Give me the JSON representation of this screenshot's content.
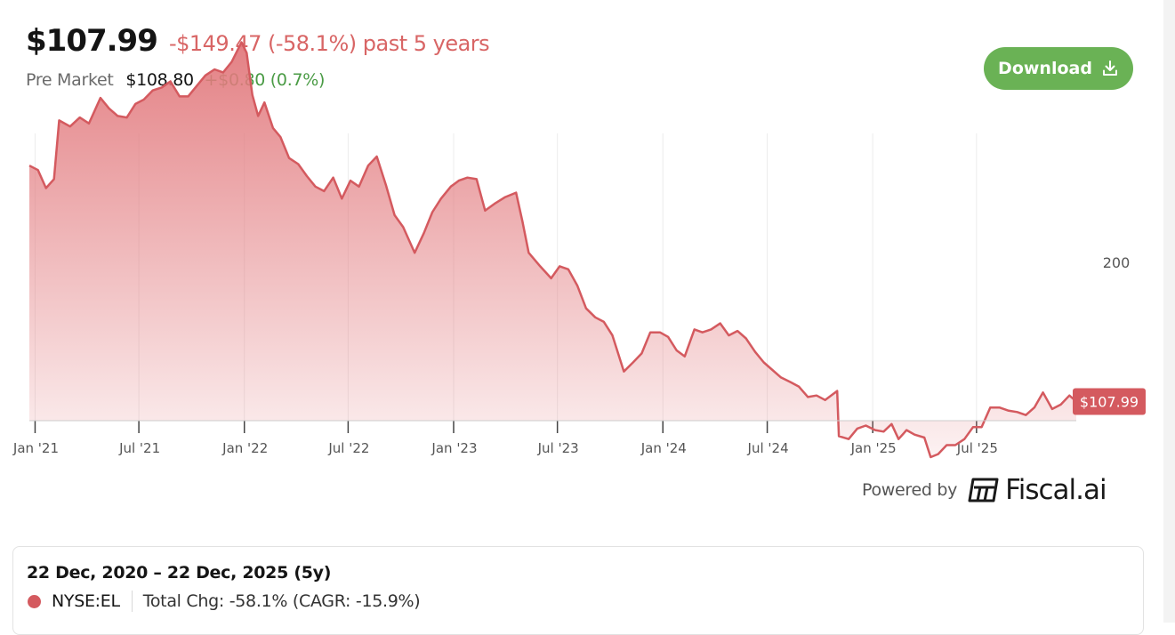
{
  "header": {
    "price": "$107.99",
    "change": "-$149.47 (-58.1%) past 5 years",
    "premarket_label": "Pre Market",
    "premarket_price": "$108.80",
    "premarket_change": "+$0.80 (0.7%)"
  },
  "download": {
    "label": "Download",
    "icon": "download-icon"
  },
  "colors": {
    "line": "#d45a5f",
    "fill": "#e27a7e",
    "grid": "#ececec",
    "positive": "#4a9b45",
    "negative": "#d86565",
    "button": "#6ab255"
  },
  "chart_data": {
    "type": "area",
    "x_label": "",
    "y_label": "",
    "ylim": [
      80,
      330
    ],
    "y_ticks": [
      {
        "value": 200,
        "label": "200"
      },
      {
        "value": 100,
        "label": "—"
      }
    ],
    "x_ticks": [
      {
        "date": "2021-01-01",
        "label": "Jan '21"
      },
      {
        "date": "2021-07-01",
        "label": "Jul '21"
      },
      {
        "date": "2022-01-01",
        "label": "Jan '22"
      },
      {
        "date": "2022-07-01",
        "label": "Jul '22"
      },
      {
        "date": "2023-01-01",
        "label": "Jan '23"
      },
      {
        "date": "2023-07-01",
        "label": "Jul '23"
      },
      {
        "date": "2024-01-01",
        "label": "Jan '24"
      },
      {
        "date": "2024-07-01",
        "label": "Jul '24"
      },
      {
        "date": "2025-01-01",
        "label": "Jan '25"
      },
      {
        "date": "2025-07-01",
        "label": "Jul '25"
      }
    ],
    "x_range": [
      "2020-12-22",
      "2025-12-22"
    ],
    "last_value_label": "$107.99",
    "series": [
      {
        "values": [
          [
            "2020-12-22",
            265
          ],
          [
            "2021-01-06",
            262
          ],
          [
            "2021-01-20",
            250
          ],
          [
            "2021-02-03",
            256
          ],
          [
            "2021-02-12",
            295
          ],
          [
            "2021-03-03",
            291
          ],
          [
            "2021-03-20",
            297
          ],
          [
            "2021-04-05",
            293
          ],
          [
            "2021-04-25",
            310
          ],
          [
            "2021-05-10",
            303
          ],
          [
            "2021-05-25",
            298
          ],
          [
            "2021-06-10",
            297
          ],
          [
            "2021-06-25",
            306
          ],
          [
            "2021-07-10",
            309
          ],
          [
            "2021-07-25",
            315
          ],
          [
            "2021-08-10",
            317
          ],
          [
            "2021-08-25",
            321
          ],
          [
            "2021-09-10",
            311
          ],
          [
            "2021-09-25",
            311
          ],
          [
            "2021-10-10",
            318
          ],
          [
            "2021-10-25",
            325
          ],
          [
            "2021-11-10",
            329
          ],
          [
            "2021-11-25",
            327
          ],
          [
            "2021-12-10",
            334
          ],
          [
            "2021-12-27",
            347
          ],
          [
            "2022-01-05",
            340
          ],
          [
            "2022-01-15",
            312
          ],
          [
            "2022-01-25",
            298
          ],
          [
            "2022-02-05",
            307
          ],
          [
            "2022-02-20",
            290
          ],
          [
            "2022-03-05",
            284
          ],
          [
            "2022-03-20",
            270
          ],
          [
            "2022-04-05",
            266
          ],
          [
            "2022-04-20",
            258
          ],
          [
            "2022-05-05",
            251
          ],
          [
            "2022-05-20",
            248
          ],
          [
            "2022-06-05",
            257
          ],
          [
            "2022-06-20",
            243
          ],
          [
            "2022-07-05",
            255
          ],
          [
            "2022-07-20",
            251
          ],
          [
            "2022-08-05",
            265
          ],
          [
            "2022-08-20",
            271
          ],
          [
            "2022-09-05",
            252
          ],
          [
            "2022-09-20",
            232
          ],
          [
            "2022-10-05",
            224
          ],
          [
            "2022-10-25",
            207
          ],
          [
            "2022-11-10",
            220
          ],
          [
            "2022-11-25",
            234
          ],
          [
            "2022-12-10",
            243
          ],
          [
            "2022-12-27",
            251
          ],
          [
            "2023-01-10",
            255
          ],
          [
            "2023-01-25",
            257
          ],
          [
            "2023-02-10",
            256
          ],
          [
            "2023-02-25",
            235
          ],
          [
            "2023-03-15",
            240
          ],
          [
            "2023-04-01",
            244
          ],
          [
            "2023-04-20",
            247
          ],
          [
            "2023-05-01",
            228
          ],
          [
            "2023-05-12",
            207
          ],
          [
            "2023-06-01",
            198
          ],
          [
            "2023-06-20",
            190
          ],
          [
            "2023-07-05",
            198
          ],
          [
            "2023-07-20",
            196
          ],
          [
            "2023-08-05",
            185
          ],
          [
            "2023-08-20",
            170
          ],
          [
            "2023-09-05",
            164
          ],
          [
            "2023-09-20",
            161
          ],
          [
            "2023-10-05",
            152
          ],
          [
            "2023-10-25",
            128
          ],
          [
            "2023-11-10",
            134
          ],
          [
            "2023-11-25",
            140
          ],
          [
            "2023-12-10",
            154
          ],
          [
            "2023-12-27",
            154
          ],
          [
            "2024-01-10",
            151
          ],
          [
            "2024-01-25",
            142
          ],
          [
            "2024-02-08",
            138
          ],
          [
            "2024-02-25",
            156
          ],
          [
            "2024-03-10",
            154
          ],
          [
            "2024-03-25",
            156
          ],
          [
            "2024-04-10",
            160
          ],
          [
            "2024-04-25",
            152
          ],
          [
            "2024-05-10",
            155
          ],
          [
            "2024-05-25",
            150
          ],
          [
            "2024-06-10",
            141
          ],
          [
            "2024-06-25",
            134
          ],
          [
            "2024-07-10",
            129
          ],
          [
            "2024-07-25",
            124
          ],
          [
            "2024-08-10",
            121
          ],
          [
            "2024-08-25",
            118
          ],
          [
            "2024-09-10",
            111
          ],
          [
            "2024-09-25",
            112
          ],
          [
            "2024-10-10",
            109
          ],
          [
            "2024-10-31",
            115
          ],
          [
            "2024-11-03",
            85
          ],
          [
            "2024-11-20",
            83
          ],
          [
            "2024-12-05",
            90
          ],
          [
            "2024-12-20",
            92
          ],
          [
            "2025-01-05",
            89
          ],
          [
            "2025-01-20",
            88
          ],
          [
            "2025-02-03",
            93
          ],
          [
            "2025-02-15",
            83
          ],
          [
            "2025-03-01",
            89
          ],
          [
            "2025-03-15",
            86
          ],
          [
            "2025-04-01",
            84
          ],
          [
            "2025-04-12",
            71
          ],
          [
            "2025-04-25",
            73
          ],
          [
            "2025-05-10",
            79
          ],
          [
            "2025-05-25",
            79
          ],
          [
            "2025-06-10",
            83
          ],
          [
            "2025-06-25",
            91
          ],
          [
            "2025-07-10",
            91
          ],
          [
            "2025-07-25",
            104
          ],
          [
            "2025-08-10",
            104
          ],
          [
            "2025-08-25",
            102
          ],
          [
            "2025-09-10",
            101
          ],
          [
            "2025-09-25",
            99
          ],
          [
            "2025-10-10",
            104
          ],
          [
            "2025-10-25",
            114
          ],
          [
            "2025-11-10",
            103
          ],
          [
            "2025-11-25",
            106
          ],
          [
            "2025-12-10",
            112
          ],
          [
            "2025-12-22",
            108
          ]
        ]
      }
    ]
  },
  "footer": {
    "powered_by": "Powered by",
    "brand": "Fiscal.ai",
    "logo_icon": "fiscal-logo-icon"
  },
  "summary": {
    "range": "22 Dec, 2020 – 22 Dec, 2025 (5y)",
    "ticker": "NYSE:EL",
    "total_change": "Total Chg: -58.1% (CAGR: -15.9%)"
  }
}
